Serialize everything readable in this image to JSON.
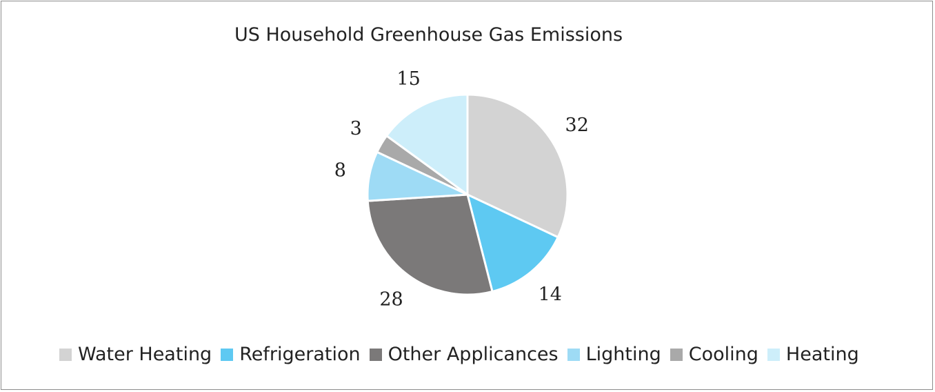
{
  "chart_data": {
    "type": "pie",
    "title": "US Household Greenhouse Gas Emissions",
    "categories": [
      "Water Heating",
      "Refrigeration",
      "Other Applicances",
      "Lighting",
      "Cooling",
      "Heating"
    ],
    "values": [
      32,
      14,
      28,
      8,
      3,
      15
    ],
    "colors": [
      "#d3d3d3",
      "#5ec9f2",
      "#7b7979",
      "#9edbf5",
      "#a9a9a9",
      "#cdeefa"
    ],
    "data_labels": [
      "32",
      "14",
      "28",
      "8",
      "3",
      "15"
    ],
    "start_angle_deg": 0,
    "direction": "clockwise",
    "legend_position": "bottom"
  }
}
